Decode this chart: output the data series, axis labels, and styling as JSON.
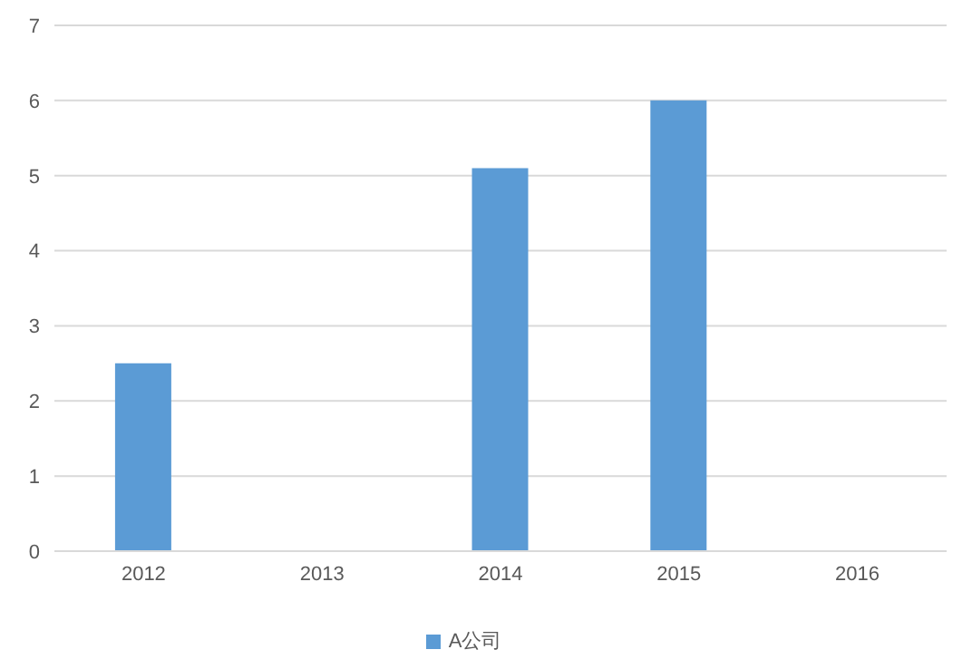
{
  "chart_data": {
    "type": "bar",
    "categories": [
      "2012",
      "2013",
      "2014",
      "2015",
      "2016"
    ],
    "series": [
      {
        "name": "A公司",
        "color": "#5b9bd5",
        "values": [
          2.5,
          null,
          5.1,
          6,
          null
        ]
      }
    ],
    "ylim": [
      0,
      7
    ],
    "yticks": [
      0,
      1,
      2,
      3,
      4,
      5,
      6,
      7
    ],
    "grid": "y",
    "legend": "bottom"
  }
}
